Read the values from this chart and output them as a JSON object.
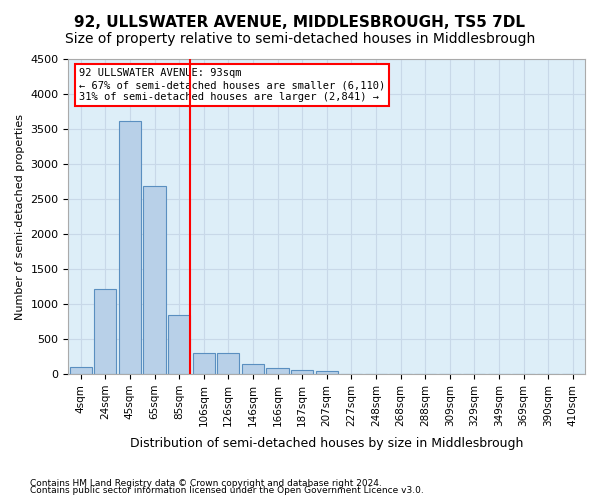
{
  "title": "92, ULLSWATER AVENUE, MIDDLESBROUGH, TS5 7DL",
  "subtitle": "Size of property relative to semi-detached houses in Middlesbrough",
  "xlabel": "Distribution of semi-detached houses by size in Middlesbrough",
  "ylabel": "Number of semi-detached properties",
  "footnote1": "Contains HM Land Registry data © Crown copyright and database right 2024.",
  "footnote2": "Contains public sector information licensed under the Open Government Licence v3.0.",
  "bin_labels": [
    "4sqm",
    "24sqm",
    "45sqm",
    "65sqm",
    "85sqm",
    "106sqm",
    "126sqm",
    "146sqm",
    "166sqm",
    "187sqm",
    "207sqm",
    "227sqm",
    "248sqm",
    "268sqm",
    "288sqm",
    "309sqm",
    "329sqm",
    "349sqm",
    "369sqm",
    "390sqm",
    "410sqm"
  ],
  "bar_values": [
    100,
    1220,
    3620,
    2680,
    850,
    300,
    300,
    140,
    80,
    60,
    40,
    0,
    0,
    0,
    0,
    0,
    0,
    0,
    0,
    0,
    0
  ],
  "bar_color": "#b8d0e8",
  "bar_edge_color": "#5a8fc0",
  "annotation_text_line1": "92 ULLSWATER AVENUE: 93sqm",
  "annotation_text_line2": "← 67% of semi-detached houses are smaller (6,110)",
  "annotation_text_line3": "31% of semi-detached houses are larger (2,841) →",
  "ylim": [
    0,
    4500
  ],
  "yticks": [
    0,
    500,
    1000,
    1500,
    2000,
    2500,
    3000,
    3500,
    4000,
    4500
  ],
  "background_color": "#ffffff",
  "grid_color": "#c8d8e8",
  "ax_bg_color": "#ddeef8",
  "title_fontsize": 11,
  "subtitle_fontsize": 10,
  "red_line_x": 4.45
}
